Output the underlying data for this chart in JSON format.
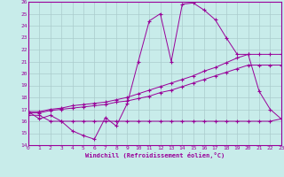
{
  "xlabel": "Windchill (Refroidissement éolien,°C)",
  "bg_color": "#c8ecea",
  "grid_color": "#aacccc",
  "line_color": "#990099",
  "xmin": 0,
  "xmax": 23,
  "ymin": 14,
  "ymax": 26,
  "yticks": [
    14,
    15,
    16,
    17,
    18,
    19,
    20,
    21,
    22,
    23,
    24,
    25,
    26
  ],
  "xticks": [
    0,
    1,
    2,
    3,
    4,
    5,
    6,
    7,
    8,
    9,
    10,
    11,
    12,
    13,
    14,
    15,
    16,
    17,
    18,
    19,
    20,
    21,
    22,
    23
  ],
  "line1_x": [
    0,
    1,
    2,
    3,
    4,
    5,
    6,
    7,
    8,
    9,
    10,
    11,
    12,
    13,
    14,
    15,
    16,
    17,
    18,
    19,
    20,
    21,
    22,
    23
  ],
  "line1_y": [
    16.8,
    16.2,
    16.5,
    16.0,
    15.2,
    14.8,
    14.5,
    16.3,
    15.6,
    17.5,
    21.0,
    24.4,
    25.0,
    21.0,
    25.8,
    25.9,
    25.3,
    24.5,
    23.0,
    21.6,
    21.6,
    18.5,
    17.0,
    16.2
  ],
  "line2_x": [
    0,
    1,
    2,
    3,
    4,
    5,
    6,
    7,
    8,
    9,
    10,
    11,
    12,
    13,
    14,
    15,
    16,
    17,
    18,
    19,
    20,
    21,
    22,
    23
  ],
  "line2_y": [
    16.8,
    16.8,
    17.0,
    17.1,
    17.3,
    17.4,
    17.5,
    17.6,
    17.8,
    18.0,
    18.3,
    18.6,
    18.9,
    19.2,
    19.5,
    19.8,
    20.2,
    20.5,
    20.9,
    21.3,
    21.6,
    21.6,
    21.6,
    21.6
  ],
  "line3_x": [
    0,
    1,
    2,
    3,
    4,
    5,
    6,
    7,
    8,
    9,
    10,
    11,
    12,
    13,
    14,
    15,
    16,
    17,
    18,
    19,
    20,
    21,
    22,
    23
  ],
  "line3_y": [
    16.7,
    16.7,
    16.9,
    17.0,
    17.1,
    17.2,
    17.3,
    17.4,
    17.6,
    17.7,
    17.9,
    18.1,
    18.4,
    18.6,
    18.9,
    19.2,
    19.5,
    19.8,
    20.1,
    20.4,
    20.7,
    20.7,
    20.7,
    20.7
  ],
  "line4_x": [
    0,
    1,
    2,
    3,
    4,
    5,
    6,
    7,
    8,
    9,
    10,
    11,
    12,
    13,
    14,
    15,
    16,
    17,
    18,
    19,
    20,
    21,
    22,
    23
  ],
  "line4_y": [
    16.5,
    16.5,
    16.0,
    16.0,
    16.0,
    16.0,
    16.0,
    16.0,
    16.0,
    16.0,
    16.0,
    16.0,
    16.0,
    16.0,
    16.0,
    16.0,
    16.0,
    16.0,
    16.0,
    16.0,
    16.0,
    16.0,
    16.0,
    16.2
  ]
}
